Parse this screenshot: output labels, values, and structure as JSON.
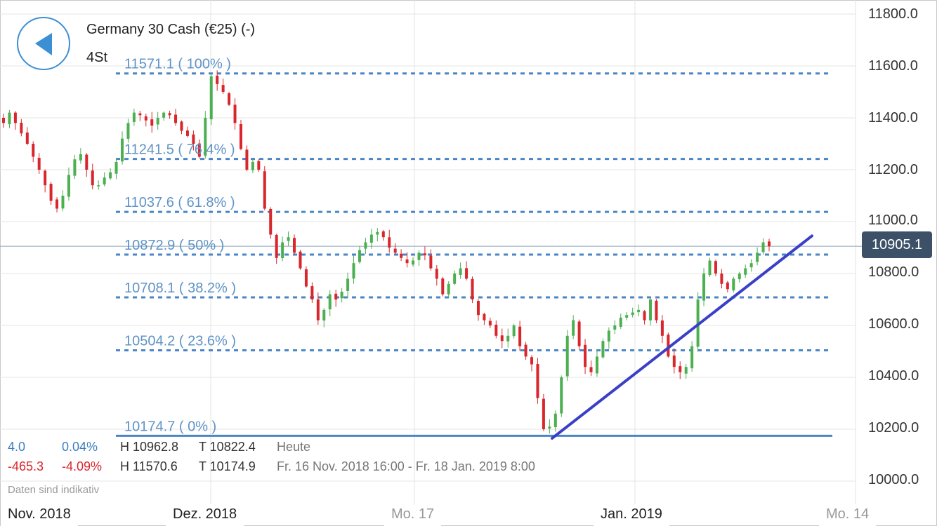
{
  "header": {
    "instrument": "Germany 30 Cash (€25) (-)",
    "timeframe": "4St"
  },
  "stats": {
    "today": {
      "change": "4.0",
      "change_pct": "0.04%",
      "high": "H 10962.8",
      "low": "T 10822.4",
      "label": "Heute"
    },
    "period": {
      "change": "-465.3",
      "change_pct": "-4.09%",
      "high": "H 11570.6",
      "low": "T 10174.9",
      "label": "Fr. 16 Nov. 2018 16:00 - Fr. 18 Jan. 2019 8:00"
    }
  },
  "note": "Daten sind indikativ",
  "current_price": "10905.1",
  "colors": {
    "up": "#4caf50",
    "down": "#d9262b",
    "fib": "#4a86c5",
    "fib_text": "#5f93c6",
    "trendline": "#3b3fc8",
    "badge": "#3c5068",
    "positive_text": "#3d7fc1",
    "negative_text": "#d9262b"
  },
  "chart_data": {
    "type": "candlestick",
    "ylim": [
      9950,
      11850
    ],
    "y_ticks": [
      "11800.0",
      "11600.0",
      "11400.0",
      "11200.0",
      "11000.0",
      "10800.0",
      "10600.0",
      "10400.0",
      "10200.0",
      "10000.0"
    ],
    "x_labels": [
      "Nov. 2018",
      "Dez. 2018",
      "Mo. 17",
      "Jan. 2019",
      "Mo. 14"
    ],
    "current_price": 10905.1,
    "fib_levels": [
      {
        "value": 11571.1,
        "label": "11571.1 ( 100% )"
      },
      {
        "value": 11241.5,
        "label": "11241.5 ( 76.4% )"
      },
      {
        "value": 11037.6,
        "label": "11037.6 ( 61.8% )"
      },
      {
        "value": 10872.9,
        "label": "10872.9 ( 50% )"
      },
      {
        "value": 10708.1,
        "label": "10708.1 ( 38.2% )"
      },
      {
        "value": 10504.2,
        "label": "10504.2 ( 23.6% )"
      },
      {
        "value": 10174.7,
        "label": "10174.7 ( 0% )"
      }
    ],
    "trendline": [
      [
        10165,
        10945
      ]
    ],
    "close_path": [
      11380,
      11420,
      11380,
      11340,
      11300,
      11250,
      11200,
      11140,
      11080,
      11050,
      11100,
      11180,
      11240,
      11260,
      11200,
      11140,
      11140,
      11170,
      11190,
      11230,
      11320,
      11380,
      11420,
      11410,
      11390,
      11370,
      11400,
      11420,
      11410,
      11380,
      11350,
      11330,
      11300,
      11250,
      11400,
      11560,
      11530,
      11500,
      11450,
      11380,
      11280,
      11200,
      11230,
      11200,
      11050,
      10950,
      10860,
      10920,
      10940,
      10880,
      10820,
      10750,
      10700,
      10620,
      10660,
      10720,
      10700,
      10730,
      10780,
      10840,
      10890,
      10920,
      10950,
      10960,
      10940,
      10900,
      10880,
      10860,
      10840,
      10850,
      10880,
      10870,
      10820,
      10780,
      10720,
      10760,
      10800,
      10820,
      10780,
      10700,
      10640,
      10620,
      10600,
      10560,
      10540,
      10560,
      10600,
      10520,
      10480,
      10450,
      10320,
      10200,
      10210,
      10260,
      10400,
      10560,
      10620,
      10520,
      10440,
      10420,
      10480,
      10540,
      10580,
      10600,
      10630,
      10640,
      10650,
      10660,
      10620,
      10700,
      10620,
      10560,
      10480,
      10440,
      10420,
      10440,
      10520,
      10700,
      10800,
      10850,
      10800,
      10760,
      10740,
      10780,
      10800,
      10820,
      10840,
      10880,
      10920,
      10905
    ]
  }
}
